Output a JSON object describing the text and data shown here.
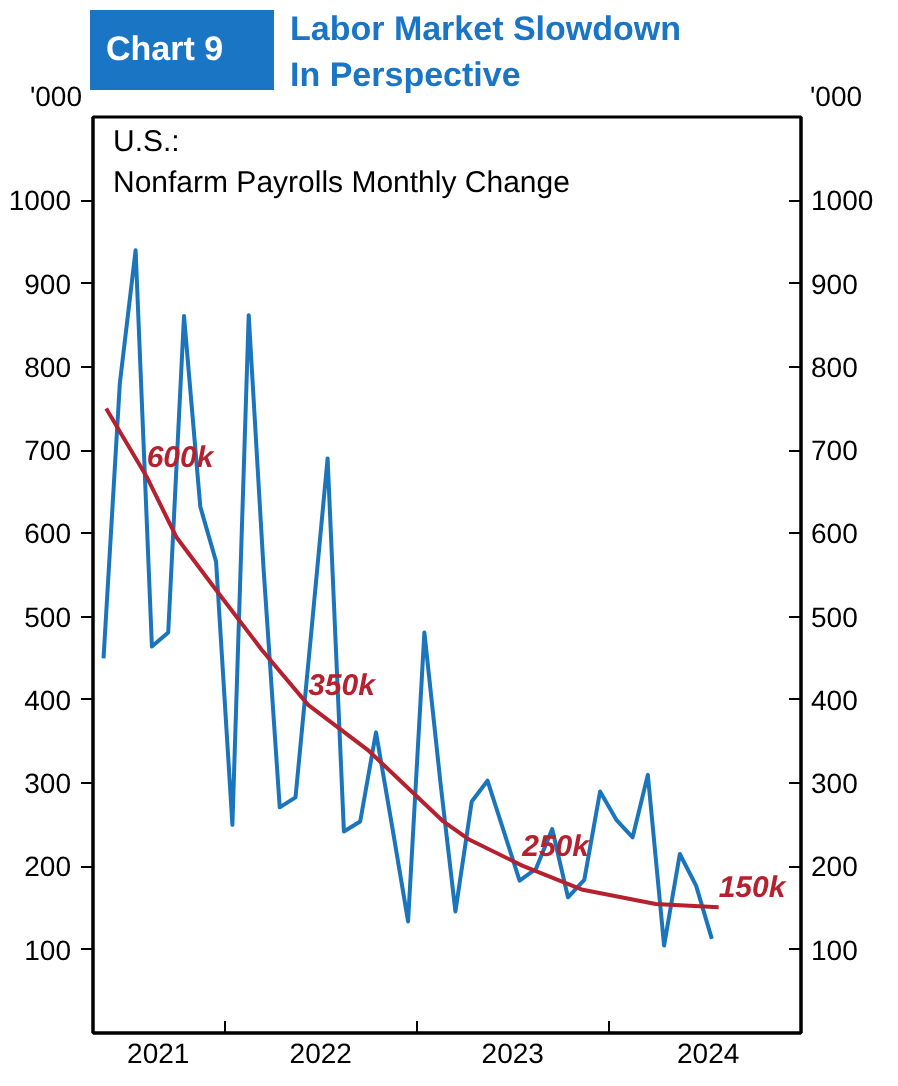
{
  "chart_data": {
    "type": "line",
    "title": "Labor Market Slowdown\nIn Perspective",
    "subtitle": "U.S.:\nNonfarm Payrolls Monthly Change",
    "ylabel": "'000",
    "y2label": "'000",
    "annotations": [
      "Chart 9",
      {
        "text": "600k",
        "x": "2021-08-05",
        "y": 668
      },
      {
        "text": "350k",
        "x": "2022-06-08",
        "y": 394
      },
      {
        "text": "250k",
        "x": "2023-07-20",
        "y": 201
      },
      {
        "text": "150k",
        "x": "2024-07-28",
        "y": 151
      }
    ],
    "series": [
      {
        "color": "#1a75bc",
        "x": [
          "2021-05-15",
          "2021-06-15",
          "2021-07-15",
          "2021-08-15",
          "2021-09-15",
          "2021-10-15",
          "2021-11-15",
          "2021-12-15",
          "2022-01-15",
          "2022-02-15",
          "2022-03-15",
          "2022-04-15",
          "2022-05-15",
          "2022-06-15",
          "2022-07-15",
          "2022-08-15",
          "2022-09-15",
          "2022-10-15",
          "2022-11-15",
          "2022-12-15",
          "2023-01-15",
          "2023-02-15",
          "2023-03-15",
          "2023-04-15",
          "2023-05-15",
          "2023-06-15",
          "2023-07-15",
          "2023-08-15",
          "2023-09-15",
          "2023-10-15",
          "2023-11-15",
          "2023-12-15",
          "2024-01-15",
          "2024-02-15",
          "2024-03-15",
          "2024-04-15",
          "2024-05-15",
          "2024-06-15",
          "2024-07-15"
        ],
        "values": [
          450,
          780,
          940,
          464,
          481,
          861,
          632,
          566,
          250,
          862,
          560,
          271,
          283,
          488,
          690,
          242,
          254,
          361,
          247,
          134,
          481,
          298,
          146,
          278,
          303,
          242,
          183,
          197,
          245,
          163,
          184,
          290,
          256,
          235,
          310,
          105,
          215,
          177,
          113
        ]
      },
      {
        "color": "#b5212e",
        "x": [
          "2021-05-20",
          "2021-08-05",
          "2021-10-01",
          "2021-12-15",
          "2022-03-12",
          "2022-06-08",
          "2022-10-01",
          "2023-02-20",
          "2023-04-08",
          "2023-07-20",
          "2023-11-12",
          "2024-03-30",
          "2024-07-28"
        ],
        "values": [
          750,
          668,
          595,
          532,
          460,
          394,
          339,
          254,
          233,
          201,
          172,
          155,
          151
        ]
      }
    ],
    "xlim": [
      "2021-04-25",
      "2025-01-01"
    ],
    "xticks": [
      {
        "value": "2022-01-01",
        "label": null
      },
      {
        "value": "2023-01-01",
        "label": null
      },
      {
        "value": "2024-01-01",
        "label": null
      },
      {
        "value": "2021-08-27",
        "label": "2021"
      },
      {
        "value": "2022-07-02",
        "label": "2022"
      },
      {
        "value": "2023-07-02",
        "label": "2023"
      },
      {
        "value": "2024-07-08",
        "label": "2024"
      }
    ],
    "ylim": [
      0,
      1100
    ],
    "yticks": [
      100,
      200,
      300,
      400,
      500,
      600,
      700,
      800,
      900,
      1000
    ],
    "y2lim": [
      0,
      1100
    ],
    "y2ticks": [
      100,
      200,
      300,
      400,
      500,
      600,
      700,
      800,
      900,
      1000
    ],
    "grid": false,
    "marker": "none",
    "line_style": "solid"
  }
}
